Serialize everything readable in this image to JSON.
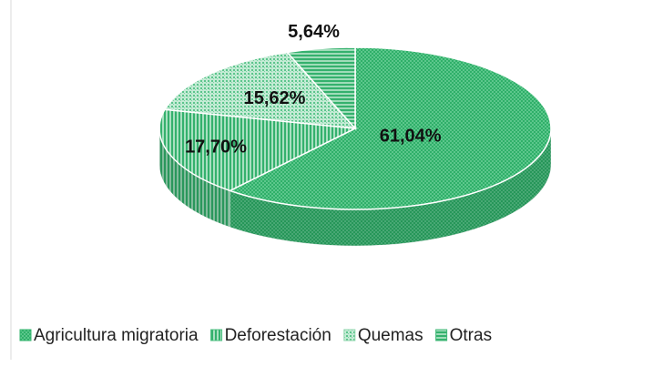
{
  "chart_data": {
    "type": "pie3d",
    "categories": [
      "Agricultura migratoria",
      "Deforestación",
      "Quemas",
      "Otras"
    ],
    "values": [
      61.04,
      17.7,
      15.62,
      5.64
    ],
    "value_labels": [
      "61,04%",
      "17,70%",
      "15,62%",
      "5,64%"
    ],
    "colors": [
      "#33b46e",
      "#4cbf80",
      "#8fd6ad",
      "#3fb877"
    ],
    "legend": "bottom"
  }
}
